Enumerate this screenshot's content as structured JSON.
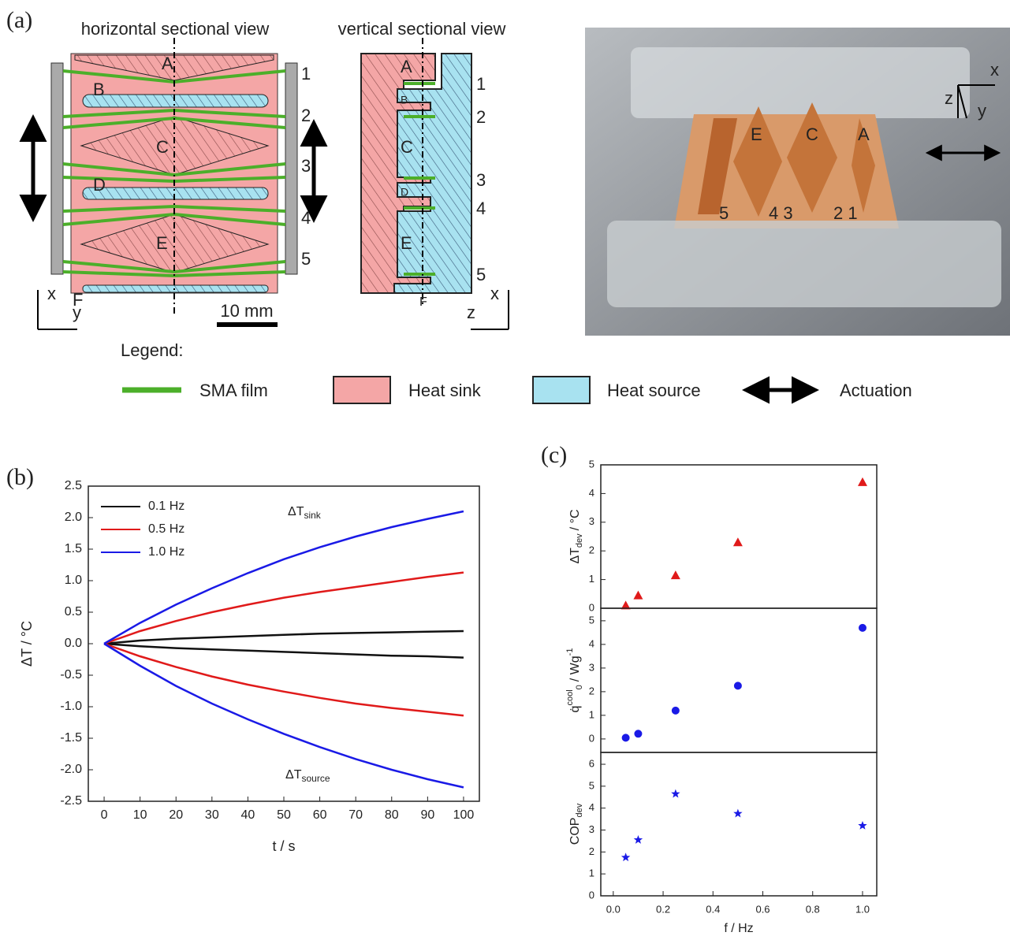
{
  "panel_a": {
    "label": "(a)",
    "horizontal_title": "horizontal sectional view",
    "vertical_title": "vertical sectional view",
    "regions": [
      "A",
      "B",
      "C",
      "D",
      "E",
      "F"
    ],
    "films": [
      "1",
      "2",
      "3",
      "4",
      "5"
    ],
    "axes_h": [
      "x",
      "y"
    ],
    "axes_v": [
      "x",
      "z"
    ],
    "scale": "10 mm"
  },
  "photo": {
    "labels": [
      "E",
      "C",
      "A"
    ],
    "film_labels": [
      "5",
      "4 3",
      "2 1"
    ],
    "axes": [
      "x",
      "z",
      "y"
    ]
  },
  "legend": {
    "title": "Legend:",
    "items": [
      "SMA film",
      "Heat sink",
      "Heat source",
      "Actuation"
    ]
  },
  "panel_b": {
    "label": "(b)"
  },
  "panel_c": {
    "label": "(c)"
  },
  "chart_data": [
    {
      "type": "line",
      "xlabel": "t / s",
      "ylabel": "ΔT / °C",
      "x": [
        0,
        10,
        20,
        30,
        40,
        50,
        60,
        70,
        80,
        90,
        100
      ],
      "series": [
        {
          "name": "0.1 Hz",
          "color": "#111111",
          "sink": [
            0,
            0.05,
            0.08,
            0.1,
            0.12,
            0.14,
            0.16,
            0.17,
            0.18,
            0.19,
            0.2
          ],
          "source": [
            0,
            -0.04,
            -0.07,
            -0.09,
            -0.11,
            -0.13,
            -0.15,
            -0.17,
            -0.19,
            -0.2,
            -0.22
          ]
        },
        {
          "name": "0.5 Hz",
          "color": "#e01a1a",
          "sink": [
            0,
            0.2,
            0.36,
            0.5,
            0.62,
            0.73,
            0.82,
            0.9,
            0.98,
            1.06,
            1.13
          ],
          "source": [
            0,
            -0.2,
            -0.37,
            -0.52,
            -0.65,
            -0.76,
            -0.86,
            -0.95,
            -1.02,
            -1.08,
            -1.14
          ]
        },
        {
          "name": "1.0 Hz",
          "color": "#1a1ae6",
          "sink": [
            0,
            0.33,
            0.62,
            0.88,
            1.12,
            1.34,
            1.53,
            1.7,
            1.85,
            1.98,
            2.1
          ],
          "source": [
            0,
            -0.35,
            -0.67,
            -0.95,
            -1.2,
            -1.43,
            -1.64,
            -1.83,
            -2.0,
            -2.15,
            -2.28
          ]
        }
      ],
      "annotations": [
        {
          "text": "ΔT",
          "sub": "sink"
        },
        {
          "text": "ΔT",
          "sub": "source"
        }
      ],
      "xlim": [
        -4.4,
        104.4
      ],
      "xticks": [
        0,
        10,
        20,
        30,
        40,
        50,
        60,
        70,
        80,
        90,
        100
      ],
      "ylim": [
        -2.5,
        2.5
      ],
      "yticks": [
        -2.5,
        {
          "value": -2,
          "label": "-2.0"
        },
        -1.5,
        {
          "value": -1,
          "label": "-1.0"
        },
        -0.5,
        {
          "value": 0,
          "label": "0.0"
        },
        0.5,
        {
          "value": 1,
          "label": "1.0"
        },
        1.5,
        {
          "value": 2,
          "label": "2.0"
        },
        2.5
      ],
      "legend": "upper left"
    },
    {
      "type": "scatter",
      "ylabel": {
        "main": "ΔT",
        "sub": "dev",
        "unit": "/ °C"
      },
      "x": [
        0.05,
        0.1,
        0.25,
        0.5,
        1.0
      ],
      "series": [
        {
          "color": "#e01a1a",
          "marker": "triangle",
          "values": [
            0.1,
            0.45,
            1.15,
            2.3,
            4.4
          ]
        }
      ],
      "xlim": [
        -0.05,
        1.057
      ],
      "ylim": [
        0,
        5
      ],
      "yticks": [
        0,
        1,
        2,
        3,
        4,
        5
      ]
    },
    {
      "type": "scatter",
      "ylabel": {
        "main": "q̇",
        "sub": "0",
        "sup": "cool",
        "unit": "/ Wg",
        "unit_sup": "-1"
      },
      "x": [
        0.05,
        0.1,
        0.25,
        0.5,
        1.0
      ],
      "series": [
        {
          "color": "#1a1ae6",
          "marker": "circle",
          "values": [
            0.05,
            0.22,
            1.2,
            2.25,
            4.7
          ]
        }
      ],
      "xlim": [
        -0.05,
        1.057
      ],
      "ylim": [
        -0.57,
        5.53
      ],
      "yticks": [
        0,
        1,
        2,
        3,
        4,
        5
      ]
    },
    {
      "type": "scatter",
      "ylabel": {
        "main": "COP",
        "sub": "dev"
      },
      "xlabel": "f / Hz",
      "x": [
        0.05,
        0.1,
        0.25,
        0.5,
        1.0
      ],
      "series": [
        {
          "color": "#1a1ae6",
          "marker": "star",
          "values": [
            1.75,
            2.55,
            4.65,
            3.75,
            3.2
          ]
        }
      ],
      "xlim": [
        -0.05,
        1.057
      ],
      "ylim": [
        0,
        6.54
      ],
      "yticks": [
        0,
        1,
        2,
        3,
        4,
        5,
        6
      ],
      "xticks": [
        {
          "value": 0,
          "label": "0.0"
        },
        0.2,
        0.4,
        0.6,
        0.8,
        {
          "value": 1,
          "label": "1.0"
        }
      ]
    }
  ]
}
